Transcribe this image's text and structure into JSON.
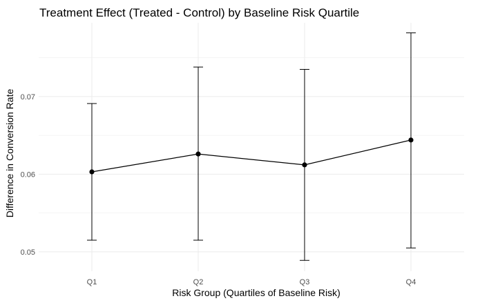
{
  "chart_data": {
    "type": "line",
    "title": "Treatment Effect (Treated - Control) by Baseline Risk Quartile",
    "xlabel": "Risk Group (Quartiles of Baseline Risk)",
    "ylabel": "Difference in Conversion Rate",
    "categories": [
      "Q1",
      "Q2",
      "Q3",
      "Q4"
    ],
    "values": [
      0.0603,
      0.0626,
      0.0612,
      0.0644
    ],
    "error_lower": [
      0.0515,
      0.0515,
      0.0489,
      0.0505
    ],
    "error_upper": [
      0.0691,
      0.0738,
      0.0735,
      0.0782
    ],
    "ylim": [
      0.0475,
      0.0795
    ],
    "yticks": [
      0.05,
      0.06,
      0.07
    ],
    "ytick_labels": [
      "0.05",
      "0.06",
      "0.07"
    ],
    "grid": true,
    "legend": "none",
    "colors": {
      "line": "#000000",
      "grid": "#ebebeb",
      "tick_text": "#4d4d4d"
    }
  }
}
